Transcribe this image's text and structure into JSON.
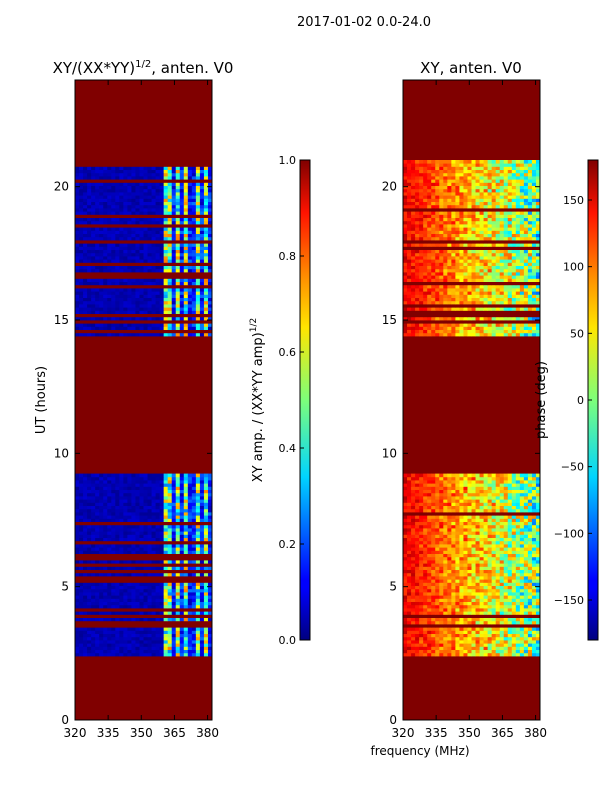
{
  "suptitle": "2017-01-02 0.0-24.0",
  "figure_xlabel": "frequency (MHz)",
  "colors": {
    "masked": "#800000",
    "background": "#00007f"
  },
  "chart_data": [
    {
      "type": "heatmap",
      "title": "XY/(XX*YY)",
      "title_sup": "1/2",
      "title_suffix": ", anten. V0",
      "xlabel": "",
      "ylabel": "UT (hours)",
      "xlim": [
        320,
        382
      ],
      "ylim": [
        0,
        24
      ],
      "xticks": [
        320,
        335,
        350,
        365,
        380
      ],
      "yticks": [
        0,
        5,
        10,
        15,
        20
      ],
      "colorbar": {
        "label": "XY amp. / (XX*YY amp)",
        "label_sup": "1/2",
        "range": [
          0.0,
          1.0
        ],
        "ticks": [
          "0.0",
          "0.2",
          "0.4",
          "0.6",
          "0.8",
          "1.0"
        ],
        "tick_values": [
          0.0,
          0.2,
          0.4,
          0.6,
          0.8,
          1.0
        ]
      },
      "masked_ut_ranges": [
        [
          0,
          2.4
        ],
        [
          9.2,
          14.4
        ],
        [
          21.0,
          24
        ]
      ],
      "data_ut_ranges": [
        [
          2.4,
          9.2
        ],
        [
          14.4,
          21.0
        ]
      ],
      "active_freq_range_mhz": [
        360,
        382
      ],
      "background_value": 0.02
    },
    {
      "type": "heatmap",
      "title": "XY, anten. V0",
      "xlabel": "frequency (MHz)",
      "ylabel": "",
      "xlim": [
        320,
        382
      ],
      "ylim": [
        0,
        24
      ],
      "xticks": [
        320,
        335,
        350,
        365,
        380
      ],
      "yticks": [
        0,
        5,
        10,
        15,
        20
      ],
      "colorbar": {
        "label": "phase (deg)",
        "range": [
          -180,
          180
        ],
        "ticks": [
          "−150",
          "−100",
          "−50",
          "0",
          "50",
          "100",
          "150"
        ],
        "tick_values": [
          -150,
          -100,
          -50,
          0,
          50,
          100,
          150
        ]
      },
      "masked_ut_ranges": [
        [
          0,
          2.4
        ],
        [
          9.2,
          14.4
        ],
        [
          21.0,
          24
        ]
      ],
      "data_ut_ranges": [
        [
          2.4,
          9.2
        ],
        [
          14.4,
          21.0
        ]
      ],
      "phase_typical_deg": {
        "low_freq": 140,
        "high_freq_spread": [
          -150,
          60
        ]
      }
    }
  ]
}
